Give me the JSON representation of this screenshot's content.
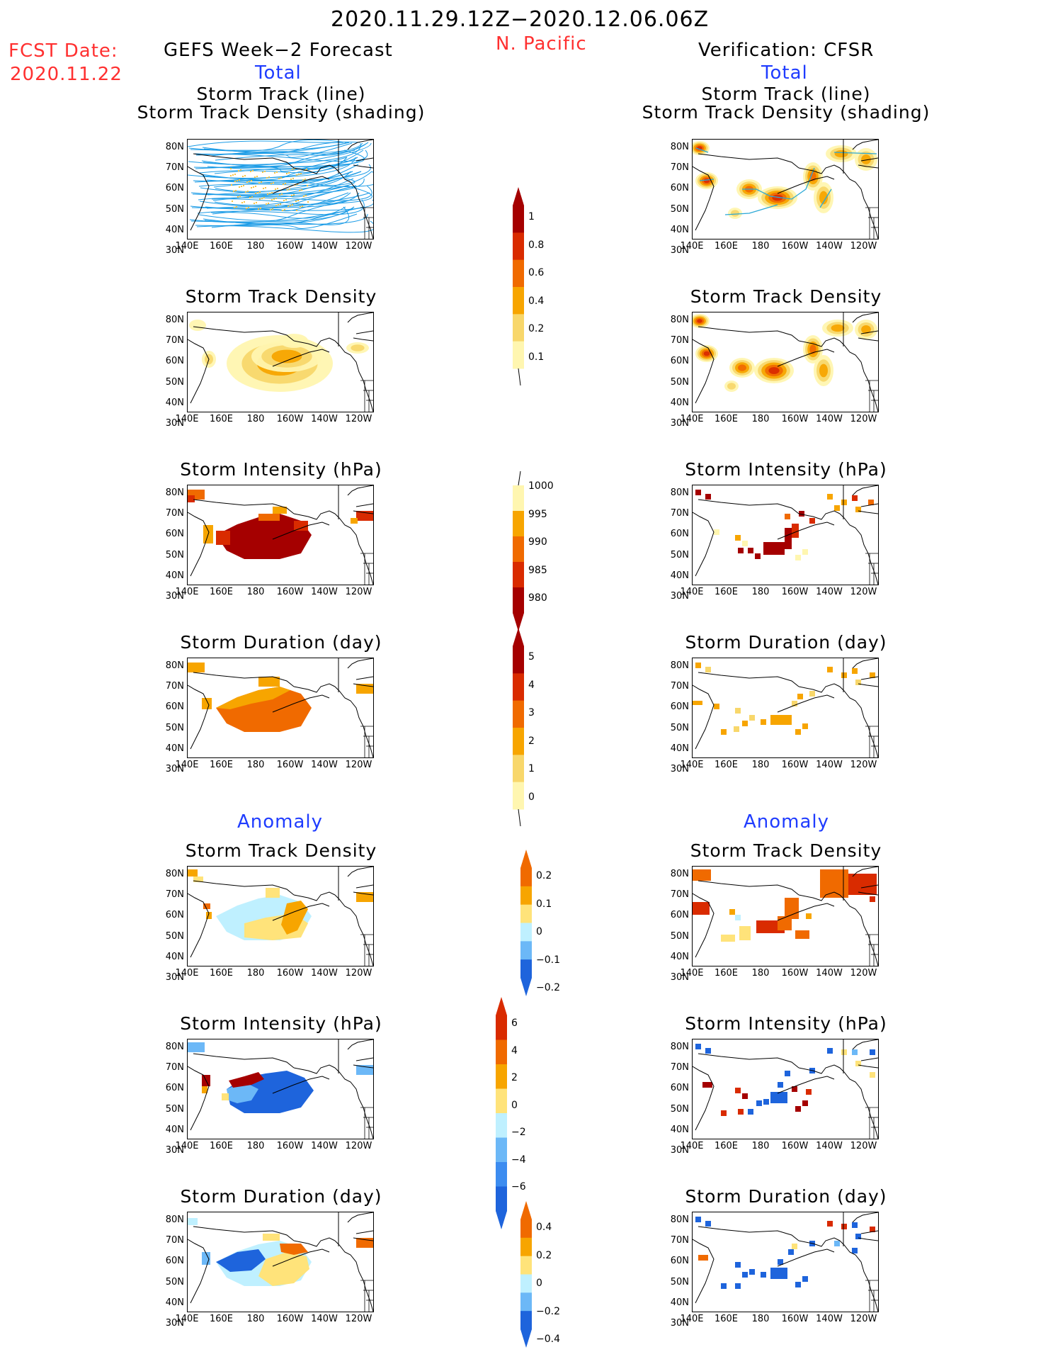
{
  "header": {
    "date_range": "2020.11.29.12Z−2020.12.06.06Z",
    "region": "N. Pacific",
    "fcst_label": "FCST Date:",
    "fcst_date": "2020.11.22",
    "left_title": "GEFS Week−2 Forecast",
    "right_title": "Verification: CFSR",
    "total_label": "Total",
    "anomaly_label": "Anomaly"
  },
  "panel_titles": {
    "track_line": "Storm Track (line)",
    "track_shading": "Storm Track Density (shading)",
    "density": "Storm Track Density",
    "intensity": "Storm Intensity (hPa)",
    "duration": "Storm Duration (day)"
  },
  "axes": {
    "lat_labels": [
      "80N",
      "70N",
      "60N",
      "50N",
      "40N",
      "30N"
    ],
    "lon_labels": [
      "140E",
      "160E",
      "180",
      "160W",
      "140W",
      "120W"
    ]
  },
  "colorbars": {
    "density_total": {
      "labels": [
        "1",
        "0.8",
        "0.6",
        "0.4",
        "0.2",
        "0.1"
      ],
      "colors": [
        "#a50000",
        "#d92b00",
        "#f06a00",
        "#f7a500",
        "#f8d76b",
        "#fff6b0"
      ]
    },
    "intensity_total": {
      "labels": [
        "1000",
        "995",
        "990",
        "985",
        "980"
      ],
      "colors": [
        "#fff6b0",
        "#f7a500",
        "#f06a00",
        "#d92b00",
        "#a50000"
      ]
    },
    "duration_total": {
      "labels": [
        "5",
        "4",
        "3",
        "2",
        "1",
        "0"
      ],
      "colors": [
        "#a50000",
        "#d92b00",
        "#f06a00",
        "#f7a500",
        "#f8d76b",
        "#fff6b0"
      ]
    },
    "density_anom": {
      "labels": [
        "0.2",
        "0.1",
        "0",
        "−0.1",
        "−0.2"
      ],
      "colors": [
        "#f06a00",
        "#f7a500",
        "#ffe37a",
        "#bff0ff",
        "#6cb8f7",
        "#1e64dc"
      ]
    },
    "intensity_anom": {
      "labels": [
        "6",
        "4",
        "2",
        "0",
        "−2",
        "−4",
        "−6"
      ],
      "colors": [
        "#d92b00",
        "#f06a00",
        "#f7a500",
        "#ffe37a",
        "#bff0ff",
        "#6cb8f7",
        "#3c8cf0",
        "#1e64dc"
      ]
    },
    "duration_anom": {
      "labels": [
        "0.4",
        "0.2",
        "0",
        "−0.2",
        "−0.4"
      ],
      "colors": [
        "#f06a00",
        "#f7a500",
        "#ffe37a",
        "#bff0ff",
        "#6cb8f7",
        "#1e64dc"
      ]
    }
  }
}
